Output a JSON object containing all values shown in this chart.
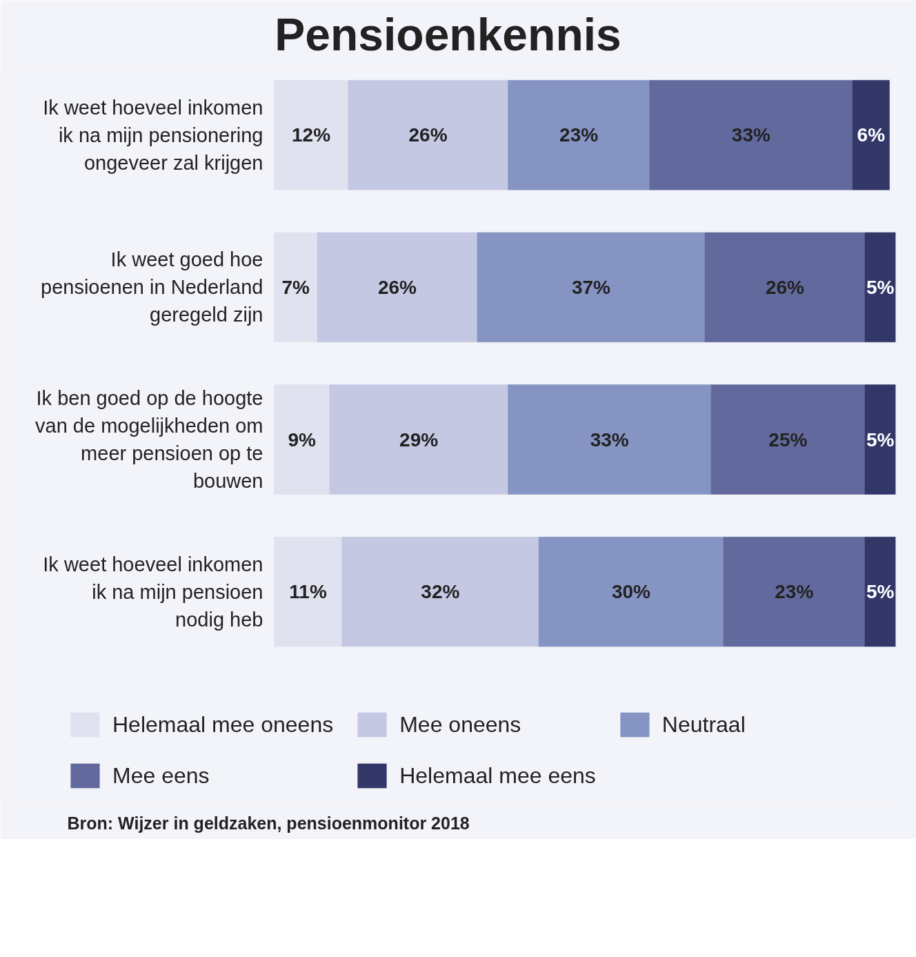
{
  "chart_data": {
    "type": "bar",
    "orientation": "horizontal",
    "stacked": true,
    "title": "Pensioenkennis",
    "categories": [
      "Ik weet hoeveel inkomen ik na mijn pensionering ongeveer zal krijgen",
      "Ik weet goed hoe pensioenen in Nederland geregeld zijn",
      "Ik ben goed op de hoogte van de mogelijkheden om meer pensioen op te bouwen",
      "Ik weet hoeveel inkomen ik na mijn pensioen nodig heb"
    ],
    "series": [
      {
        "name": "Helemaal mee oneens",
        "color": "#e1e2f0",
        "values": [
          12,
          7,
          9,
          11
        ],
        "value_labels": [
          "12%",
          "7%",
          "9%",
          "11%"
        ]
      },
      {
        "name": "Mee oneens",
        "color": "#c5c8e3",
        "values": [
          26,
          26,
          29,
          32
        ],
        "value_labels": [
          "26%",
          "26%",
          "29%",
          "32%"
        ]
      },
      {
        "name": "Neutraal",
        "color": "#8594c2",
        "values": [
          23,
          37,
          33,
          30
        ],
        "value_labels": [
          "23%",
          "37%",
          "33%",
          "30%"
        ]
      },
      {
        "name": "Mee eens",
        "color": "#626a9d",
        "values": [
          33,
          26,
          25,
          23
        ],
        "value_labels": [
          "33%",
          "26%",
          "25%",
          "23%"
        ]
      },
      {
        "name": "Helemaal mee eens",
        "color": "#323768",
        "values": [
          6,
          5,
          5,
          5
        ],
        "value_labels": [
          "6%",
          "5%",
          "5%",
          "5%"
        ]
      }
    ],
    "tick_labels": "y",
    "legend": "bottom",
    "annotations": [
      "Bron: Wijzer in geldzaken, pensioenmonitor 2018"
    ]
  }
}
